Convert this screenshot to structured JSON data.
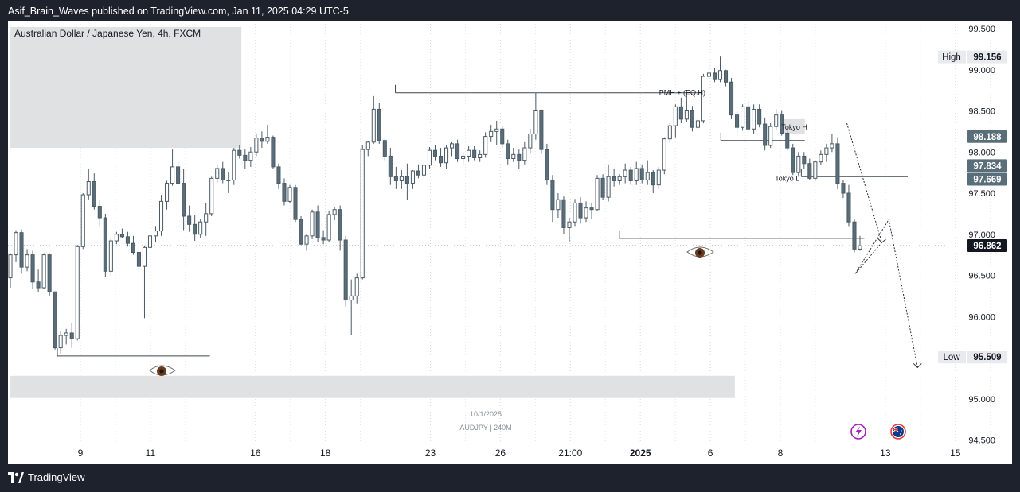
{
  "header": {
    "publish_line": "Asif_Brain_Waves published on TradingView.com, Jan 11, 2025 04:29 UTC-5"
  },
  "footer": {
    "brand": "TradingView"
  },
  "chart_data": {
    "type": "candlestick",
    "title": "Australian Dollar / Japanese Yen, 4h, FXCM",
    "watermark": {
      "date": "10/1/2025",
      "symbol": "AUDJPY | 240M"
    },
    "y_axis": {
      "ticks": [
        "99.500",
        "99.000",
        "98.500",
        "98.000",
        "97.500",
        "97.000",
        "96.500",
        "96.000",
        "95.500",
        "95.000",
        "94.500"
      ],
      "ylim": [
        94.5,
        99.72
      ]
    },
    "x_axis": {
      "ticks": [
        {
          "label": "9",
          "x": 0
        },
        {
          "label": "11",
          "x": 1
        },
        {
          "label": "16",
          "x": 2.5
        },
        {
          "label": "18",
          "x": 3.5
        },
        {
          "label": "23",
          "x": 5
        },
        {
          "label": "26",
          "x": 6
        },
        {
          "label": "21:00",
          "x": 7
        },
        {
          "label": "2025",
          "x": 8,
          "bold": true
        },
        {
          "label": "6",
          "x": 9
        },
        {
          "label": "8",
          "x": 10
        },
        {
          "label": "13",
          "x": 11.5
        },
        {
          "label": "15",
          "x": 12.5
        }
      ]
    },
    "price_labels": [
      {
        "tag": "High",
        "value": "99.156",
        "style": "light"
      },
      {
        "tag": "",
        "value": "98.188",
        "style": "dark"
      },
      {
        "tag": "",
        "value": "97.834",
        "style": "dark"
      },
      {
        "tag": "",
        "value": "97.669",
        "style": "dark"
      },
      {
        "tag": "",
        "value": "96.862",
        "style": "black"
      },
      {
        "tag": "Low",
        "value": "95.509",
        "style": "light"
      }
    ],
    "annotations": [
      {
        "text": "PMH + (EQ.H)",
        "price": 98.72
      },
      {
        "text": "Tokyo H",
        "price": 98.3
      },
      {
        "text": "Tokyo L",
        "price": 97.68
      }
    ],
    "levels": [
      {
        "name": "pmh",
        "price": 98.72,
        "x_start": 4.5,
        "x_end": 8.9
      },
      {
        "name": "tokyo-high",
        "price": 98.14,
        "x_start": 9.15,
        "x_end": 10.35
      },
      {
        "name": "tokyo-low",
        "price": 97.7,
        "x_start": 10.3,
        "x_end": 11.82
      },
      {
        "name": "low-sweep",
        "price": 96.95,
        "x_start": 7.7,
        "x_end": 11.2
      },
      {
        "name": "left-low",
        "price": 95.52,
        "x_start": -0.33,
        "x_end": 1.85
      }
    ],
    "zones": [
      {
        "name": "upper-supply",
        "price_top": 99.52,
        "price_bottom": 98.05,
        "x_start": -1.0,
        "x_end": 2.3
      },
      {
        "name": "lower-demand",
        "price_top": 95.28,
        "price_bottom": 95.01,
        "x_start": -1.0,
        "x_end": 9.35
      },
      {
        "name": "tokyo-box",
        "price_top": 98.4,
        "price_bottom": 98.22,
        "x_start": 10.0,
        "x_end": 10.35
      }
    ],
    "projection": [
      {
        "x": 10.95,
        "price": 98.35
      },
      {
        "x": 11.45,
        "price": 96.9
      },
      {
        "x": 11.07,
        "price": 96.52
      },
      {
        "x": 11.55,
        "price": 97.18
      },
      {
        "x": 11.96,
        "price": 95.38
      }
    ],
    "candles": [
      {
        "o": 96.47,
        "h": 96.77,
        "l": 96.35,
        "c": 96.75
      },
      {
        "o": 96.75,
        "h": 97.05,
        "l": 96.66,
        "c": 97.02
      },
      {
        "o": 97.02,
        "h": 97.06,
        "l": 96.52,
        "c": 96.6
      },
      {
        "o": 96.6,
        "h": 96.82,
        "l": 96.55,
        "c": 96.75
      },
      {
        "o": 96.75,
        "h": 96.8,
        "l": 96.33,
        "c": 96.42
      },
      {
        "o": 96.42,
        "h": 96.57,
        "l": 96.3,
        "c": 96.35
      },
      {
        "o": 96.35,
        "h": 96.77,
        "l": 96.33,
        "c": 96.75
      },
      {
        "o": 96.75,
        "h": 96.77,
        "l": 96.25,
        "c": 96.3
      },
      {
        "o": 96.3,
        "h": 96.3,
        "l": 95.6,
        "c": 95.62
      },
      {
        "o": 95.62,
        "h": 95.82,
        "l": 95.55,
        "c": 95.77
      },
      {
        "o": 95.77,
        "h": 95.85,
        "l": 95.66,
        "c": 95.8
      },
      {
        "o": 95.8,
        "h": 95.92,
        "l": 95.62,
        "c": 95.73
      },
      {
        "o": 95.73,
        "h": 96.87,
        "l": 95.71,
        "c": 96.85
      },
      {
        "o": 96.85,
        "h": 97.5,
        "l": 96.82,
        "c": 97.48
      },
      {
        "o": 97.48,
        "h": 97.8,
        "l": 97.42,
        "c": 97.64
      },
      {
        "o": 97.64,
        "h": 97.74,
        "l": 97.3,
        "c": 97.34
      },
      {
        "o": 97.34,
        "h": 97.42,
        "l": 97.1,
        "c": 97.2
      },
      {
        "o": 97.2,
        "h": 97.25,
        "l": 96.48,
        "c": 96.55
      },
      {
        "o": 96.55,
        "h": 96.95,
        "l": 96.5,
        "c": 96.92
      },
      {
        "o": 96.92,
        "h": 97.03,
        "l": 96.88,
        "c": 97.0
      },
      {
        "o": 97.0,
        "h": 97.07,
        "l": 96.95,
        "c": 96.97
      },
      {
        "o": 96.97,
        "h": 97.03,
        "l": 96.85,
        "c": 96.89
      },
      {
        "o": 96.89,
        "h": 96.98,
        "l": 96.75,
        "c": 96.78
      },
      {
        "o": 96.78,
        "h": 96.9,
        "l": 96.55,
        "c": 96.61
      },
      {
        "o": 96.61,
        "h": 96.86,
        "l": 95.98,
        "c": 96.84
      },
      {
        "o": 96.84,
        "h": 97.06,
        "l": 96.72,
        "c": 96.98
      },
      {
        "o": 96.98,
        "h": 97.1,
        "l": 96.9,
        "c": 97.04
      },
      {
        "o": 97.04,
        "h": 97.48,
        "l": 96.98,
        "c": 97.4
      },
      {
        "o": 97.4,
        "h": 97.65,
        "l": 97.3,
        "c": 97.62
      },
      {
        "o": 97.62,
        "h": 98.03,
        "l": 97.59,
        "c": 97.82
      },
      {
        "o": 97.82,
        "h": 97.88,
        "l": 97.6,
        "c": 97.62
      },
      {
        "o": 97.62,
        "h": 97.8,
        "l": 97.05,
        "c": 97.22
      },
      {
        "o": 97.22,
        "h": 97.35,
        "l": 97.03,
        "c": 97.12
      },
      {
        "o": 97.12,
        "h": 97.23,
        "l": 96.92,
        "c": 97.0
      },
      {
        "o": 97.0,
        "h": 97.18,
        "l": 96.96,
        "c": 97.15
      },
      {
        "o": 97.15,
        "h": 97.38,
        "l": 96.98,
        "c": 97.25
      },
      {
        "o": 97.25,
        "h": 97.7,
        "l": 97.22,
        "c": 97.68
      },
      {
        "o": 97.68,
        "h": 97.85,
        "l": 97.63,
        "c": 97.8
      },
      {
        "o": 97.8,
        "h": 97.88,
        "l": 97.62,
        "c": 97.66
      },
      {
        "o": 97.66,
        "h": 97.75,
        "l": 97.5,
        "c": 97.66
      },
      {
        "o": 97.66,
        "h": 98.05,
        "l": 97.6,
        "c": 98.02
      },
      {
        "o": 98.02,
        "h": 98.08,
        "l": 97.92,
        "c": 97.96
      },
      {
        "o": 97.96,
        "h": 98.03,
        "l": 97.8,
        "c": 97.9
      },
      {
        "o": 97.9,
        "h": 98.06,
        "l": 97.82,
        "c": 98.0
      },
      {
        "o": 98.0,
        "h": 98.22,
        "l": 97.95,
        "c": 98.17
      },
      {
        "o": 98.17,
        "h": 98.25,
        "l": 98.05,
        "c": 98.13
      },
      {
        "o": 98.13,
        "h": 98.33,
        "l": 98.1,
        "c": 98.18
      },
      {
        "o": 98.18,
        "h": 98.2,
        "l": 97.8,
        "c": 97.82
      },
      {
        "o": 97.82,
        "h": 97.86,
        "l": 97.55,
        "c": 97.62
      },
      {
        "o": 97.62,
        "h": 97.68,
        "l": 97.35,
        "c": 97.4
      },
      {
        "o": 97.4,
        "h": 97.6,
        "l": 97.38,
        "c": 97.57
      },
      {
        "o": 97.57,
        "h": 97.6,
        "l": 97.15,
        "c": 97.18
      },
      {
        "o": 97.18,
        "h": 97.22,
        "l": 96.87,
        "c": 96.88
      },
      {
        "o": 96.88,
        "h": 97.0,
        "l": 96.8,
        "c": 96.98
      },
      {
        "o": 96.98,
        "h": 97.3,
        "l": 96.94,
        "c": 97.27
      },
      {
        "o": 97.27,
        "h": 97.35,
        "l": 96.9,
        "c": 96.96
      },
      {
        "o": 96.96,
        "h": 97.05,
        "l": 96.88,
        "c": 96.93
      },
      {
        "o": 96.93,
        "h": 97.28,
        "l": 96.9,
        "c": 97.24
      },
      {
        "o": 97.24,
        "h": 97.33,
        "l": 97.17,
        "c": 97.3
      },
      {
        "o": 97.3,
        "h": 97.35,
        "l": 96.8,
        "c": 96.93
      },
      {
        "o": 96.93,
        "h": 96.98,
        "l": 96.12,
        "c": 96.2
      },
      {
        "o": 96.2,
        "h": 96.45,
        "l": 95.78,
        "c": 96.25
      },
      {
        "o": 96.25,
        "h": 96.52,
        "l": 96.16,
        "c": 96.47
      },
      {
        "o": 96.47,
        "h": 98.08,
        "l": 96.45,
        "c": 98.03
      },
      {
        "o": 98.03,
        "h": 98.13,
        "l": 97.95,
        "c": 98.12
      },
      {
        "o": 98.12,
        "h": 98.68,
        "l": 98.1,
        "c": 98.52
      },
      {
        "o": 98.52,
        "h": 98.6,
        "l": 98.1,
        "c": 98.14
      },
      {
        "o": 98.14,
        "h": 98.16,
        "l": 97.9,
        "c": 97.95
      },
      {
        "o": 97.95,
        "h": 98.05,
        "l": 97.6,
        "c": 97.7
      },
      {
        "o": 97.7,
        "h": 97.82,
        "l": 97.55,
        "c": 97.65
      },
      {
        "o": 97.65,
        "h": 97.78,
        "l": 97.55,
        "c": 97.7
      },
      {
        "o": 97.7,
        "h": 97.86,
        "l": 97.42,
        "c": 97.62
      },
      {
        "o": 97.62,
        "h": 97.78,
        "l": 97.55,
        "c": 97.77
      },
      {
        "o": 97.77,
        "h": 97.85,
        "l": 97.68,
        "c": 97.72
      },
      {
        "o": 97.72,
        "h": 97.86,
        "l": 97.68,
        "c": 97.84
      },
      {
        "o": 97.84,
        "h": 98.06,
        "l": 97.8,
        "c": 98.02
      },
      {
        "o": 98.02,
        "h": 98.08,
        "l": 97.9,
        "c": 97.95
      },
      {
        "o": 97.95,
        "h": 98.05,
        "l": 97.82,
        "c": 97.87
      },
      {
        "o": 97.87,
        "h": 98.08,
        "l": 97.8,
        "c": 98.05
      },
      {
        "o": 98.05,
        "h": 98.12,
        "l": 97.95,
        "c": 98.1
      },
      {
        "o": 98.1,
        "h": 98.15,
        "l": 97.88,
        "c": 97.92
      },
      {
        "o": 97.92,
        "h": 98.0,
        "l": 97.85,
        "c": 97.95
      },
      {
        "o": 97.95,
        "h": 98.07,
        "l": 97.88,
        "c": 98.02
      },
      {
        "o": 98.02,
        "h": 98.07,
        "l": 97.9,
        "c": 97.93
      },
      {
        "o": 97.93,
        "h": 98.02,
        "l": 97.88,
        "c": 97.97
      },
      {
        "o": 97.97,
        "h": 98.24,
        "l": 97.93,
        "c": 98.19
      },
      {
        "o": 98.19,
        "h": 98.33,
        "l": 98.12,
        "c": 98.25
      },
      {
        "o": 98.25,
        "h": 98.38,
        "l": 98.08,
        "c": 98.28
      },
      {
        "o": 98.28,
        "h": 98.32,
        "l": 98.05,
        "c": 98.1
      },
      {
        "o": 98.1,
        "h": 98.15,
        "l": 97.85,
        "c": 97.92
      },
      {
        "o": 97.92,
        "h": 98.05,
        "l": 97.88,
        "c": 97.97
      },
      {
        "o": 97.97,
        "h": 98.03,
        "l": 97.8,
        "c": 97.9
      },
      {
        "o": 97.9,
        "h": 98.12,
        "l": 97.85,
        "c": 98.05
      },
      {
        "o": 98.05,
        "h": 98.28,
        "l": 97.98,
        "c": 98.22
      },
      {
        "o": 98.22,
        "h": 98.72,
        "l": 98.15,
        "c": 98.5
      },
      {
        "o": 98.5,
        "h": 98.52,
        "l": 97.98,
        "c": 98.03
      },
      {
        "o": 98.03,
        "h": 98.1,
        "l": 97.6,
        "c": 97.66
      },
      {
        "o": 97.66,
        "h": 97.72,
        "l": 97.15,
        "c": 97.3
      },
      {
        "o": 97.3,
        "h": 97.5,
        "l": 97.2,
        "c": 97.42
      },
      {
        "o": 97.42,
        "h": 97.46,
        "l": 97.0,
        "c": 97.08
      },
      {
        "o": 97.08,
        "h": 97.2,
        "l": 96.9,
        "c": 97.15
      },
      {
        "o": 97.15,
        "h": 97.43,
        "l": 97.1,
        "c": 97.38
      },
      {
        "o": 97.38,
        "h": 97.45,
        "l": 97.13,
        "c": 97.2
      },
      {
        "o": 97.2,
        "h": 97.4,
        "l": 97.15,
        "c": 97.32
      },
      {
        "o": 97.32,
        "h": 97.38,
        "l": 97.18,
        "c": 97.3
      },
      {
        "o": 97.3,
        "h": 97.72,
        "l": 97.28,
        "c": 97.68
      },
      {
        "o": 97.68,
        "h": 97.73,
        "l": 97.42,
        "c": 97.45
      },
      {
        "o": 97.45,
        "h": 97.85,
        "l": 97.4,
        "c": 97.7
      },
      {
        "o": 97.7,
        "h": 97.8,
        "l": 97.58,
        "c": 97.65
      },
      {
        "o": 97.65,
        "h": 97.73,
        "l": 97.6,
        "c": 97.7
      },
      {
        "o": 97.7,
        "h": 97.86,
        "l": 97.62,
        "c": 97.78
      },
      {
        "o": 97.78,
        "h": 97.82,
        "l": 97.6,
        "c": 97.65
      },
      {
        "o": 97.65,
        "h": 97.88,
        "l": 97.6,
        "c": 97.8
      },
      {
        "o": 97.8,
        "h": 97.85,
        "l": 97.62,
        "c": 97.66
      },
      {
        "o": 97.66,
        "h": 97.9,
        "l": 97.6,
        "c": 97.75
      },
      {
        "o": 97.75,
        "h": 97.78,
        "l": 97.5,
        "c": 97.6
      },
      {
        "o": 97.6,
        "h": 97.82,
        "l": 97.55,
        "c": 97.78
      },
      {
        "o": 97.78,
        "h": 98.18,
        "l": 97.73,
        "c": 98.16
      },
      {
        "o": 98.16,
        "h": 98.35,
        "l": 98.12,
        "c": 98.32
      },
      {
        "o": 98.32,
        "h": 98.58,
        "l": 98.18,
        "c": 98.55
      },
      {
        "o": 98.55,
        "h": 98.66,
        "l": 98.35,
        "c": 98.4
      },
      {
        "o": 98.4,
        "h": 98.72,
        "l": 98.36,
        "c": 98.5
      },
      {
        "o": 98.5,
        "h": 98.56,
        "l": 98.25,
        "c": 98.3
      },
      {
        "o": 98.3,
        "h": 98.42,
        "l": 98.26,
        "c": 98.38
      },
      {
        "o": 98.38,
        "h": 98.95,
        "l": 98.35,
        "c": 98.92
      },
      {
        "o": 98.92,
        "h": 99.05,
        "l": 98.88,
        "c": 98.96
      },
      {
        "o": 98.96,
        "h": 99.02,
        "l": 98.85,
        "c": 98.88
      },
      {
        "o": 98.88,
        "h": 99.16,
        "l": 98.85,
        "c": 98.99
      },
      {
        "o": 98.99,
        "h": 99.0,
        "l": 98.8,
        "c": 98.85
      },
      {
        "o": 98.85,
        "h": 98.9,
        "l": 98.4,
        "c": 98.45
      },
      {
        "o": 98.45,
        "h": 98.5,
        "l": 98.2,
        "c": 98.3
      },
      {
        "o": 98.3,
        "h": 98.58,
        "l": 98.26,
        "c": 98.55
      },
      {
        "o": 98.55,
        "h": 98.62,
        "l": 98.25,
        "c": 98.28
      },
      {
        "o": 98.28,
        "h": 98.58,
        "l": 98.22,
        "c": 98.52
      },
      {
        "o": 98.52,
        "h": 98.58,
        "l": 98.3,
        "c": 98.34
      },
      {
        "o": 98.34,
        "h": 98.42,
        "l": 98.02,
        "c": 98.08
      },
      {
        "o": 98.08,
        "h": 98.35,
        "l": 98.05,
        "c": 98.31
      },
      {
        "o": 98.31,
        "h": 98.52,
        "l": 98.27,
        "c": 98.45
      },
      {
        "o": 98.45,
        "h": 98.5,
        "l": 98.2,
        "c": 98.23
      },
      {
        "o": 98.23,
        "h": 98.26,
        "l": 98.02,
        "c": 98.05
      },
      {
        "o": 98.05,
        "h": 98.1,
        "l": 97.72,
        "c": 97.75
      },
      {
        "o": 97.75,
        "h": 98.0,
        "l": 97.7,
        "c": 97.95
      },
      {
        "o": 97.95,
        "h": 98.0,
        "l": 97.8,
        "c": 97.86
      },
      {
        "o": 97.86,
        "h": 97.92,
        "l": 97.66,
        "c": 97.68
      },
      {
        "o": 97.68,
        "h": 97.9,
        "l": 97.65,
        "c": 97.88
      },
      {
        "o": 97.88,
        "h": 98.02,
        "l": 97.84,
        "c": 97.97
      },
      {
        "o": 97.97,
        "h": 98.1,
        "l": 97.88,
        "c": 98.05
      },
      {
        "o": 98.05,
        "h": 98.22,
        "l": 98.0,
        "c": 98.1
      },
      {
        "o": 98.1,
        "h": 98.18,
        "l": 97.55,
        "c": 97.62
      },
      {
        "o": 97.62,
        "h": 97.66,
        "l": 97.44,
        "c": 97.5
      },
      {
        "o": 97.5,
        "h": 97.6,
        "l": 97.1,
        "c": 97.15
      },
      {
        "o": 97.15,
        "h": 97.18,
        "l": 96.78,
        "c": 96.82
      },
      {
        "o": 96.82,
        "h": 96.98,
        "l": 96.8,
        "c": 96.86
      }
    ]
  }
}
